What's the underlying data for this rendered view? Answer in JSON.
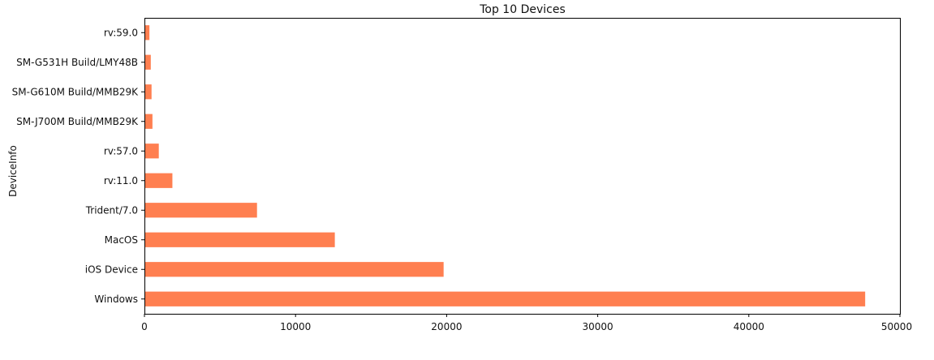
{
  "chart_data": {
    "type": "bar",
    "orientation": "horizontal",
    "title": "Top 10 Devices",
    "xlabel": "",
    "ylabel": "DeviceInfo",
    "categories": [
      "Windows",
      "iOS Device",
      "MacOS",
      "Trident/7.0",
      "rv:11.0",
      "rv:57.0",
      "SM-J700M Build/MMB29K",
      "SM-G610M Build/MMB29K",
      "SM-G531H Build/LMY48B",
      "rv:59.0"
    ],
    "values": [
      47700,
      19800,
      12600,
      7450,
      1850,
      950,
      530,
      470,
      420,
      330
    ],
    "xlim": [
      0,
      50000
    ],
    "xticks": [
      0,
      10000,
      20000,
      30000,
      40000,
      50000
    ],
    "bar_color": "#ff7f50",
    "grid": false,
    "legend": "none"
  }
}
